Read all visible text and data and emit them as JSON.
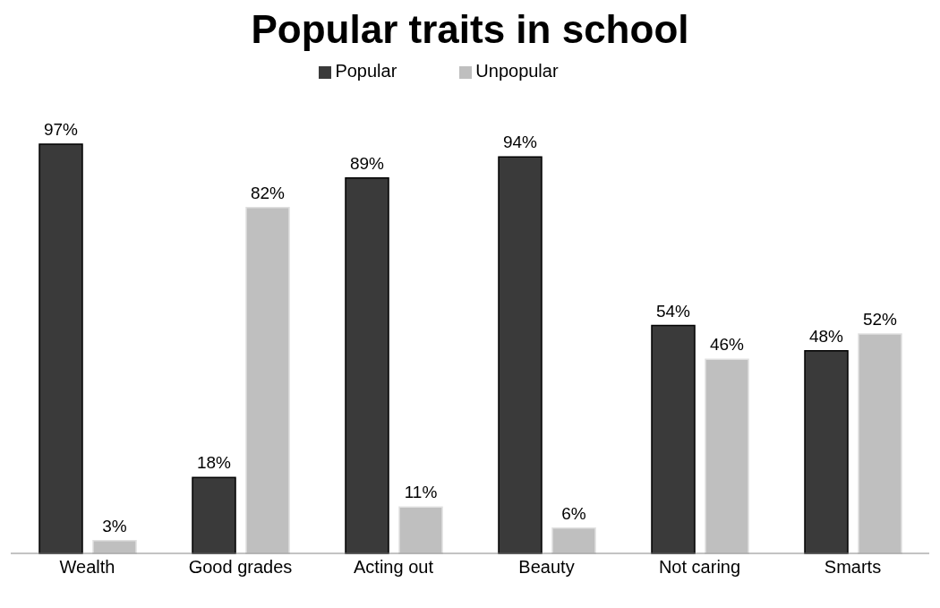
{
  "chart_data": {
    "type": "bar",
    "title": "Popular traits in school",
    "categories": [
      "Wealth",
      "Good grades",
      "Acting out",
      "Beauty",
      "Not caring",
      "Smarts"
    ],
    "series": [
      {
        "name": "Popular",
        "color": "#3a3a3a",
        "values": [
          97,
          18,
          89,
          94,
          54,
          48
        ],
        "value_labels": [
          "97%",
          "18%",
          "89%",
          "94%",
          "54%",
          "48%"
        ]
      },
      {
        "name": "Unpopular",
        "color": "#bfbfbf",
        "values": [
          3,
          82,
          11,
          6,
          46,
          52
        ],
        "value_labels": [
          "3%",
          "82%",
          "11%",
          "6%",
          "46%",
          "52%"
        ]
      }
    ],
    "legend": "top",
    "grid": false
  }
}
